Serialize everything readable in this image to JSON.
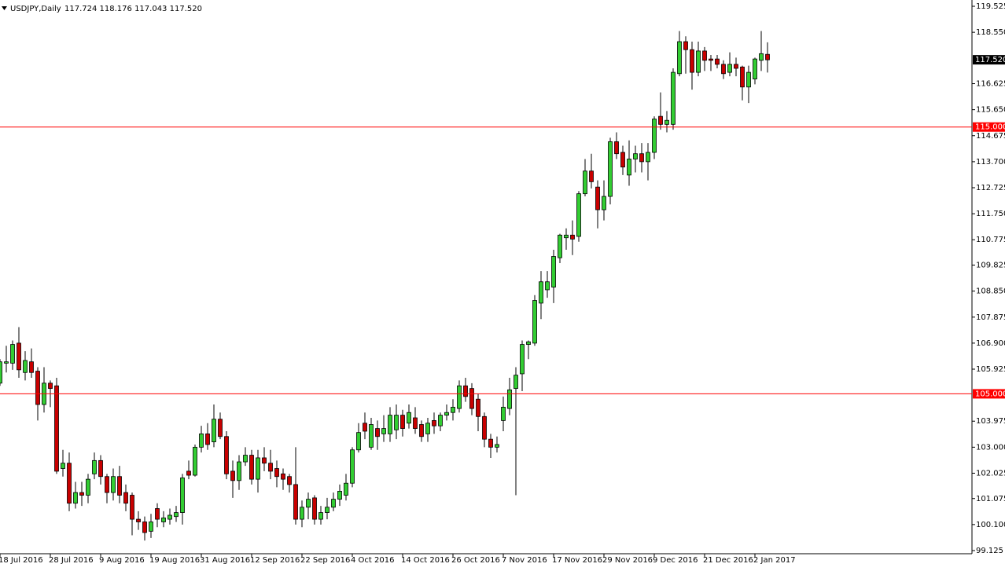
{
  "chart_data": {
    "type": "candlestick",
    "title": "USDJPY,Daily",
    "subtitle": "117.724 118.176 117.043 117.520",
    "categories": [
      "18 Jul 2016",
      null,
      null,
      null,
      null,
      null,
      null,
      null,
      "28 Jul 2016",
      null,
      null,
      null,
      null,
      null,
      null,
      null,
      "9 Aug 2016",
      null,
      null,
      null,
      null,
      null,
      null,
      null,
      "19 Aug 2016",
      null,
      null,
      null,
      null,
      null,
      null,
      null,
      "31 Aug 2016",
      null,
      null,
      null,
      null,
      null,
      null,
      null,
      "12 Sep 2016",
      null,
      null,
      null,
      null,
      null,
      null,
      null,
      "22 Sep 2016",
      null,
      null,
      null,
      null,
      null,
      null,
      null,
      "4 Oct 2016",
      null,
      null,
      null,
      null,
      null,
      null,
      null,
      "14 Oct 2016",
      null,
      null,
      null,
      null,
      null,
      null,
      null,
      "26 Oct 2016",
      null,
      null,
      null,
      null,
      null,
      null,
      null,
      "7 Nov 2016",
      null,
      null,
      null,
      null,
      null,
      null,
      null,
      "17 Nov 2016",
      null,
      null,
      null,
      null,
      null,
      null,
      null,
      "29 Nov 2016",
      null,
      null,
      null,
      null,
      null,
      null,
      null,
      "9 Dec 2016",
      null,
      null,
      null,
      null,
      null,
      null,
      null,
      "21 Dec 2016",
      null,
      null,
      null,
      null,
      null,
      null,
      null,
      "2 Jan 2017",
      null,
      null
    ],
    "open": [
      105.4,
      106.15,
      106.15,
      106.9,
      105.8,
      106.2,
      105.85,
      104.6,
      105.4,
      105.3,
      102.2,
      102.4,
      100.9,
      101.3,
      101.2,
      102.0,
      102.5,
      101.9,
      101.3,
      101.9,
      101.3,
      101.2,
      100.3,
      100.2,
      99.85,
      100.7,
      100.2,
      100.3,
      100.4,
      100.55,
      102.1,
      101.95,
      103.0,
      103.5,
      103.2,
      104.05,
      103.4,
      102.1,
      101.75,
      102.45,
      102.7,
      101.8,
      102.6,
      102.4,
      102.2,
      102.0,
      101.9,
      101.6,
      100.3,
      100.75,
      101.1,
      100.3,
      100.55,
      100.75,
      101.05,
      101.2,
      101.65,
      102.9,
      103.9,
      103.0,
      103.7,
      103.5,
      103.5,
      103.65,
      104.2,
      103.9,
      104.1,
      103.85,
      103.5,
      104.0,
      103.8,
      104.2,
      104.3,
      104.45,
      105.3,
      105.2,
      104.8,
      104.15,
      103.3,
      103.0,
      104.0,
      104.45,
      105.2,
      105.75,
      106.85,
      106.9,
      108.4,
      108.9,
      109.0,
      110.1,
      110.85,
      110.95,
      110.9,
      112.5,
      113.35,
      112.75,
      111.9,
      112.4,
      114.45,
      114.05,
      113.2,
      113.8,
      114.0,
      113.7,
      114.05,
      115.4,
      115.1,
      115.1,
      117.0,
      118.2,
      117.9,
      117.05,
      117.85,
      117.55,
      117.55,
      117.35,
      117.05,
      117.35,
      117.25,
      116.5,
      116.8,
      117.5,
      117.724
    ],
    "high": [
      106.3,
      106.8,
      107.0,
      107.5,
      106.6,
      106.7,
      106.0,
      106.0,
      105.5,
      105.6,
      102.9,
      102.8,
      101.7,
      101.7,
      102.0,
      102.8,
      102.7,
      102.0,
      102.2,
      102.3,
      101.6,
      101.3,
      100.6,
      100.4,
      100.5,
      100.9,
      100.6,
      100.7,
      100.8,
      102.0,
      102.5,
      103.1,
      103.8,
      103.9,
      104.6,
      104.3,
      103.6,
      102.5,
      102.7,
      103.0,
      102.9,
      102.9,
      103.0,
      102.9,
      102.5,
      102.2,
      102.0,
      103.0,
      101.0,
      101.3,
      101.2,
      100.8,
      101.1,
      101.3,
      101.6,
      102.0,
      103.0,
      103.9,
      104.3,
      104.1,
      104.0,
      104.2,
      104.5,
      104.6,
      104.4,
      104.6,
      104.5,
      104.0,
      104.1,
      104.3,
      104.3,
      104.6,
      104.8,
      105.5,
      105.6,
      105.4,
      105.0,
      104.3,
      103.5,
      103.4,
      104.9,
      105.6,
      106.0,
      107.0,
      107.0,
      108.7,
      109.6,
      109.6,
      110.4,
      111.0,
      111.2,
      111.5,
      112.6,
      113.8,
      114.0,
      113.0,
      113.0,
      114.6,
      114.8,
      114.3,
      114.5,
      114.3,
      114.4,
      114.4,
      115.4,
      116.3,
      115.6,
      117.2,
      118.6,
      118.4,
      118.2,
      118.2,
      118.0,
      117.7,
      117.7,
      117.5,
      117.8,
      117.6,
      117.3,
      117.3,
      117.6,
      118.6,
      118.176
    ],
    "low": [
      105.3,
      105.8,
      105.9,
      105.6,
      105.5,
      105.6,
      104.0,
      104.3,
      104.5,
      102.0,
      101.9,
      100.6,
      100.7,
      100.8,
      100.9,
      101.8,
      101.6,
      100.9,
      101.0,
      100.9,
      100.6,
      99.7,
      99.9,
      99.5,
      99.6,
      100.0,
      100.0,
      100.1,
      100.2,
      100.1,
      101.8,
      101.9,
      102.8,
      102.9,
      103.0,
      103.3,
      101.8,
      101.1,
      101.4,
      102.3,
      101.6,
      101.3,
      102.1,
      101.8,
      101.5,
      101.4,
      101.3,
      100.1,
      100.0,
      100.3,
      100.1,
      100.1,
      100.3,
      100.6,
      100.8,
      101.0,
      101.5,
      102.8,
      103.3,
      102.9,
      102.9,
      103.2,
      103.2,
      103.3,
      103.4,
      103.7,
      103.5,
      103.2,
      103.2,
      103.5,
      103.6,
      104.0,
      104.0,
      104.3,
      104.7,
      104.2,
      103.6,
      103.0,
      102.6,
      102.8,
      103.6,
      104.2,
      101.2,
      105.1,
      106.3,
      106.8,
      107.8,
      108.6,
      108.4,
      109.9,
      110.4,
      110.2,
      110.7,
      112.4,
      112.7,
      111.2,
      111.5,
      112.1,
      113.8,
      113.2,
      112.8,
      113.3,
      113.3,
      113.0,
      113.8,
      114.9,
      114.8,
      114.9,
      116.9,
      117.0,
      116.4,
      116.9,
      117.1,
      117.1,
      117.2,
      116.8,
      116.9,
      116.9,
      116.0,
      115.9,
      116.6,
      117.1,
      117.043
    ],
    "close": [
      106.2,
      106.2,
      106.85,
      105.9,
      106.25,
      105.8,
      104.6,
      105.4,
      105.2,
      102.1,
      102.4,
      100.9,
      101.3,
      101.2,
      101.8,
      102.5,
      101.9,
      101.3,
      101.9,
      101.2,
      100.9,
      100.3,
      100.2,
      99.8,
      100.2,
      100.3,
      100.35,
      100.45,
      100.55,
      101.85,
      101.95,
      103.0,
      103.5,
      103.1,
      104.05,
      103.4,
      102.0,
      101.75,
      102.45,
      102.7,
      101.8,
      102.6,
      102.4,
      102.1,
      101.9,
      101.8,
      101.6,
      100.3,
      100.75,
      101.05,
      100.3,
      100.55,
      100.75,
      101.05,
      101.35,
      101.65,
      102.9,
      103.55,
      103.6,
      103.85,
      103.4,
      103.7,
      104.2,
      104.2,
      103.7,
      104.3,
      103.7,
      103.4,
      103.9,
      103.8,
      104.2,
      104.3,
      104.5,
      105.3,
      104.9,
      104.45,
      104.15,
      103.3,
      103.0,
      103.1,
      104.5,
      105.15,
      105.7,
      106.85,
      106.95,
      108.5,
      109.2,
      109.2,
      110.15,
      110.95,
      110.95,
      110.8,
      112.5,
      113.35,
      112.95,
      111.9,
      112.4,
      114.45,
      114.0,
      113.5,
      113.8,
      114.0,
      113.7,
      114.05,
      115.3,
      115.1,
      115.25,
      117.05,
      118.2,
      117.9,
      117.05,
      117.85,
      117.5,
      117.5,
      117.35,
      117.0,
      117.35,
      117.2,
      116.5,
      117.05,
      117.55,
      117.75,
      117.52
    ],
    "up_color": "#32cd32",
    "down_color": "#c80000",
    "ylim": [
      99.007,
      119.761
    ],
    "yticks": [
      119.525,
      {
        "value": 118.55,
        "label": "118.550"
      },
      116.625,
      {
        "value": 115.65,
        "label": "115.650"
      },
      114.675,
      {
        "value": 113.7,
        "label": "113.700"
      },
      112.725,
      {
        "value": 111.75,
        "label": "111.750"
      },
      110.775,
      109.825,
      {
        "value": 108.85,
        "label": "108.850"
      },
      107.875,
      {
        "value": 106.9,
        "label": "106.900"
      },
      105.925,
      103.975,
      {
        "value": 103,
        "label": "103.000"
      },
      102.025,
      101.075,
      {
        "value": 100.1,
        "label": "100.100"
      },
      99.125
    ],
    "levels": [
      {
        "value": 115,
        "label": "115.000"
      },
      {
        "value": 105,
        "label": "105.000"
      }
    ],
    "level_color": "#ff0000",
    "last_price": {
      "value": 117.52,
      "label": "117.520"
    }
  }
}
